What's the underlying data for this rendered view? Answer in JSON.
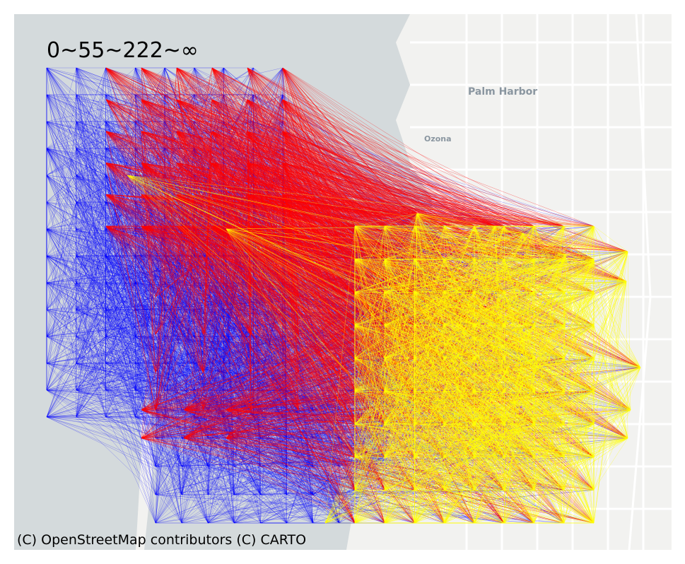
{
  "legend": {
    "text": "0~55~222~∞"
  },
  "attribution": "(C) OpenStreetMap contributors (C) CARTO",
  "places": [
    {
      "name": "Palm Harbor"
    },
    {
      "name": "Ozona"
    }
  ],
  "colors": {
    "water": "#d4dadc",
    "land": "#f2f2f0",
    "road": "#ffffff",
    "low_band": "#0000ff",
    "mid_band": "#ff0000",
    "high_band": "#ffff00"
  },
  "flow_bands": [
    {
      "label": "0~55",
      "color": "#0000ff"
    },
    {
      "label": "55~222",
      "color": "#ff0000"
    },
    {
      "label": "222~∞",
      "color": "#ffff00"
    }
  ]
}
